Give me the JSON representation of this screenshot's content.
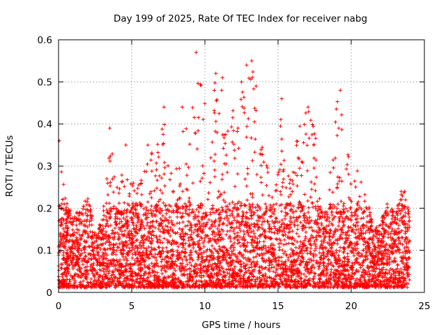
{
  "chart_data": {
    "type": "scatter",
    "title": "Day 199 of 2025, Rate Of TEC Index for receiver nabg",
    "xlabel": "GPS time / hours",
    "ylabel": "ROTI / TECUs",
    "xlim": [
      0,
      25
    ],
    "ylim": [
      0,
      0.6
    ],
    "x_ticks": [
      0,
      5,
      10,
      15,
      20,
      25
    ],
    "y_ticks": [
      0,
      0.1,
      0.2,
      0.3,
      0.4,
      0.5,
      0.6
    ],
    "x_tick_labels": [
      "0",
      "5",
      "10",
      "15",
      "20",
      "25"
    ],
    "y_tick_labels": [
      "0",
      "0.1",
      "0.2",
      "0.3",
      "0.4",
      "0.5",
      "0.6"
    ],
    "grid": true,
    "marker": "+",
    "color": "#ff0000",
    "upper_envelope": [
      [
        0.0,
        0.36
      ],
      [
        0.5,
        0.22
      ],
      [
        1.0,
        0.18
      ],
      [
        1.5,
        0.2
      ],
      [
        2.0,
        0.24
      ],
      [
        2.5,
        0.14
      ],
      [
        3.0,
        0.18
      ],
      [
        3.5,
        0.39
      ],
      [
        4.0,
        0.26
      ],
      [
        4.5,
        0.29
      ],
      [
        5.0,
        0.26
      ],
      [
        5.5,
        0.26
      ],
      [
        6.0,
        0.3
      ],
      [
        6.5,
        0.35
      ],
      [
        7.0,
        0.37
      ],
      [
        7.25,
        0.44
      ],
      [
        7.5,
        0.3
      ],
      [
        8.0,
        0.28
      ],
      [
        8.5,
        0.44
      ],
      [
        9.0,
        0.4
      ],
      [
        9.5,
        0.57
      ],
      [
        10.0,
        0.46
      ],
      [
        10.5,
        0.43
      ],
      [
        10.75,
        0.52
      ],
      [
        11.0,
        0.48
      ],
      [
        11.5,
        0.45
      ],
      [
        12.0,
        0.43
      ],
      [
        12.5,
        0.5
      ],
      [
        13.0,
        0.54
      ],
      [
        13.25,
        0.55
      ],
      [
        13.5,
        0.48
      ],
      [
        14.0,
        0.34
      ],
      [
        14.5,
        0.29
      ],
      [
        15.0,
        0.3
      ],
      [
        15.25,
        0.46
      ],
      [
        15.5,
        0.25
      ],
      [
        16.0,
        0.33
      ],
      [
        16.5,
        0.4
      ],
      [
        17.0,
        0.44
      ],
      [
        17.5,
        0.39
      ],
      [
        18.0,
        0.25
      ],
      [
        18.5,
        0.27
      ],
      [
        19.0,
        0.45
      ],
      [
        19.25,
        0.48
      ],
      [
        19.5,
        0.38
      ],
      [
        20.0,
        0.3
      ],
      [
        20.5,
        0.29
      ],
      [
        21.0,
        0.25
      ],
      [
        21.5,
        0.15
      ],
      [
        22.0,
        0.17
      ],
      [
        22.5,
        0.21
      ],
      [
        23.0,
        0.19
      ],
      [
        23.5,
        0.25
      ],
      [
        24.0,
        0.19
      ]
    ],
    "notable_points": [
      [
        9.4,
        0.57
      ],
      [
        13.2,
        0.55
      ],
      [
        12.85,
        0.54
      ],
      [
        10.75,
        0.52
      ],
      [
        11.2,
        0.51
      ],
      [
        12.5,
        0.5
      ],
      [
        13.5,
        0.49
      ],
      [
        19.25,
        0.48
      ],
      [
        11.15,
        0.48
      ],
      [
        15.25,
        0.46
      ],
      [
        17.05,
        0.44
      ],
      [
        7.2,
        0.44
      ],
      [
        8.45,
        0.44
      ],
      [
        3.5,
        0.39
      ],
      [
        19.15,
        0.39
      ],
      [
        0.05,
        0.36
      ],
      [
        4.6,
        0.35
      ],
      [
        6.1,
        0.35
      ],
      [
        22.45,
        0.21
      ],
      [
        23.65,
        0.24
      ]
    ],
    "point_density_note": "dense cluster of points from 0.01 to ~0.2 across 0-24 h"
  }
}
